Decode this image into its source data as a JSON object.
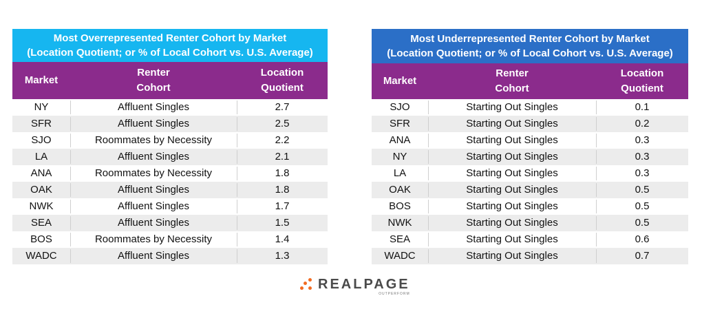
{
  "left_table": {
    "title_line1": "Most Overrepresented Renter Cohort by Market",
    "title_line2": "(Location Quotient; or % of Local Cohort vs. U.S. Average)",
    "headers": {
      "market": "Market",
      "cohort_line1": "Renter",
      "cohort_line2": "Cohort",
      "lq_line1": "Location",
      "lq_line2": "Quotient"
    },
    "rows": [
      {
        "market": "NY",
        "cohort": "Affluent Singles",
        "lq": "2.7"
      },
      {
        "market": "SFR",
        "cohort": "Affluent Singles",
        "lq": "2.5"
      },
      {
        "market": "SJO",
        "cohort": "Roommates by Necessity",
        "lq": "2.2"
      },
      {
        "market": "LA",
        "cohort": "Affluent Singles",
        "lq": "2.1"
      },
      {
        "market": "ANA",
        "cohort": "Roommates by Necessity",
        "lq": "1.8"
      },
      {
        "market": "OAK",
        "cohort": "Affluent Singles",
        "lq": "1.8"
      },
      {
        "market": "NWK",
        "cohort": "Affluent Singles",
        "lq": "1.7"
      },
      {
        "market": "SEA",
        "cohort": "Affluent Singles",
        "lq": "1.5"
      },
      {
        "market": "BOS",
        "cohort": "Roommates by Necessity",
        "lq": "1.4"
      },
      {
        "market": "WADC",
        "cohort": "Affluent Singles",
        "lq": "1.3"
      }
    ]
  },
  "right_table": {
    "title_line1": "Most Underrepresented Renter Cohort by Market",
    "title_line2": "(Location Quotient; or % of Local Cohort vs. U.S. Average)",
    "headers": {
      "market": "Market",
      "cohort_line1": "Renter",
      "cohort_line2": "Cohort",
      "lq_line1": "Location",
      "lq_line2": "Quotient"
    },
    "rows": [
      {
        "market": "SJO",
        "cohort": "Starting Out Singles",
        "lq": "0.1"
      },
      {
        "market": "SFR",
        "cohort": "Starting Out Singles",
        "lq": "0.2"
      },
      {
        "market": "ANA",
        "cohort": "Starting Out Singles",
        "lq": "0.3"
      },
      {
        "market": "NY",
        "cohort": "Starting Out Singles",
        "lq": "0.3"
      },
      {
        "market": "LA",
        "cohort": "Starting Out Singles",
        "lq": "0.3"
      },
      {
        "market": "OAK",
        "cohort": "Starting Out Singles",
        "lq": "0.5"
      },
      {
        "market": "BOS",
        "cohort": "Starting Out Singles",
        "lq": "0.5"
      },
      {
        "market": "NWK",
        "cohort": "Starting Out Singles",
        "lq": "0.5"
      },
      {
        "market": "SEA",
        "cohort": "Starting Out Singles",
        "lq": "0.6"
      },
      {
        "market": "WADC",
        "cohort": "Starting Out Singles",
        "lq": "0.7"
      }
    ]
  },
  "logo": {
    "name": "REALPAGE",
    "tagline": "OUTPERFORM",
    "accent_color": "#f26b21"
  },
  "colors": {
    "left_title_bg": "#16b6f0",
    "right_title_bg": "#2b6fc7",
    "header_bg": "#8b2b8c",
    "row_shade": "#ececec"
  }
}
